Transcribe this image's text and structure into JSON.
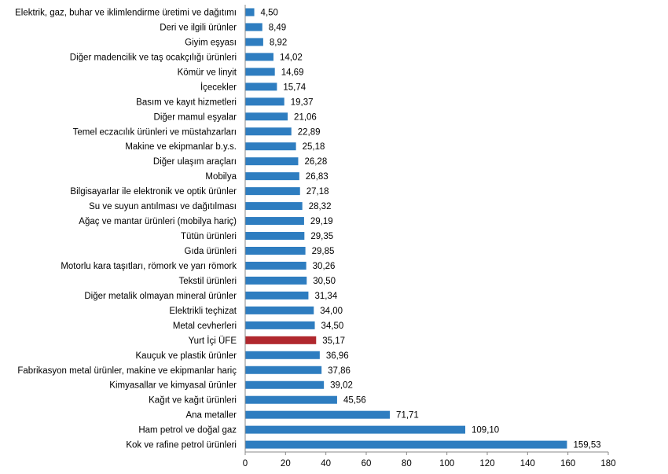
{
  "chart_data": {
    "type": "bar",
    "orientation": "horizontal",
    "categories": [
      "Elektrik, gaz, buhar ve iklimlendirme üretimi ve dağıtımı",
      "Deri ve ilgili ürünler",
      "Giyim eşyası",
      "Diğer madencilik ve taş ocakçılığı ürünleri",
      "Kömür ve linyit",
      "İçecekler",
      "Basım ve kayıt hizmetleri",
      "Diğer mamul eşyalar",
      "Temel eczacılık ürünleri ve müstahzarları",
      "Makine ve ekipmanlar b.y.s.",
      "Diğer ulaşım araçları",
      "Mobilya",
      "Bilgisayarlar ile elektronik ve optik ürünler",
      "Su ve suyun antılması ve dağıtılması",
      "Ağaç ve mantar ürünleri (mobilya hariç)",
      "Tütün ürünleri",
      "Gıda ürünleri",
      "Motorlu kara taşıtları, römork ve yarı römork",
      "Tekstil ürünleri",
      "Diğer metalik olmayan mineral ürünler",
      "Elektrikli teçhizat",
      "Metal cevherleri",
      "Yurt İçi ÜFE",
      "Kauçuk ve plastik ürünler",
      "Fabrikasyon metal ürünler, makine ve ekipmanlar hariç",
      "Kimyasallar ve kimyasal ürünler",
      "Kağıt ve kağıt ürünleri",
      "Ana metaller",
      "Ham petrol ve doğal gaz",
      "Kok ve rafine petrol ürünleri"
    ],
    "values": [
      4.5,
      8.49,
      8.92,
      14.02,
      14.69,
      15.74,
      19.37,
      21.06,
      22.89,
      25.18,
      26.28,
      26.83,
      27.18,
      28.32,
      29.19,
      29.35,
      29.85,
      30.26,
      30.5,
      31.34,
      34.0,
      34.5,
      35.17,
      36.96,
      37.86,
      39.02,
      45.56,
      71.71,
      109.1,
      159.53
    ],
    "value_labels": [
      "4,50",
      "8,49",
      "8,92",
      "14,02",
      "14,69",
      "15,74",
      "19,37",
      "21,06",
      "22,89",
      "25,18",
      "26,28",
      "26,83",
      "27,18",
      "28,32",
      "29,19",
      "29,35",
      "29,85",
      "30,26",
      "30,50",
      "31,34",
      "34,00",
      "34,50",
      "35,17",
      "36,96",
      "37,86",
      "39,02",
      "45,56",
      "71,71",
      "109,10",
      "159,53"
    ],
    "highlight_category": "Yurt İçi ÜFE",
    "xlim": [
      0,
      180
    ],
    "x_ticks": [
      0,
      20,
      40,
      60,
      80,
      100,
      120,
      140,
      160,
      180
    ],
    "title": "",
    "xlabel": "",
    "ylabel": "",
    "grid": false,
    "legend": "none",
    "colors": {
      "bar": "#2e7dc0",
      "highlight": "#b0282e",
      "axis": "#888888",
      "text": "#000000"
    }
  }
}
